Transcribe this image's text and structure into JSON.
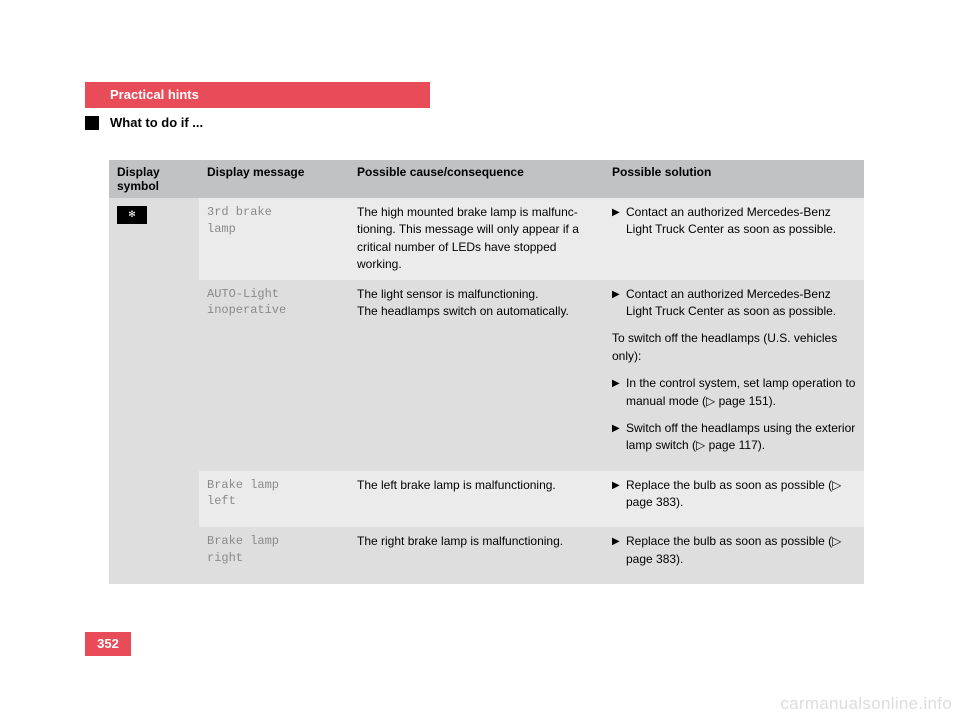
{
  "header": {
    "section_title": "Practical hints",
    "subtitle": "What to do if ..."
  },
  "table": {
    "headers": {
      "symbol": "Display symbol",
      "message": "Display message",
      "cause": "Possible cause/consequence",
      "solution": "Possible solution"
    },
    "symbol_glyph": "✻",
    "rows": [
      {
        "shade": "light",
        "message": "3rd brake\nlamp",
        "cause": "The high mounted brake lamp is malfunc-tioning. This message will only appear if a critical number of LEDs have stopped working.",
        "solution_items": [
          {
            "type": "bullet",
            "text": "Contact an authorized Mercedes-Benz Light Truck Center as soon as possible."
          }
        ]
      },
      {
        "shade": "dark",
        "message": "AUTO-Light\ninoperative",
        "cause": "The light sensor is malfunctioning.\nThe headlamps switch on automatically.",
        "solution_items": [
          {
            "type": "bullet",
            "text": "Contact an authorized Mercedes-Benz Light Truck Center as soon as possible."
          },
          {
            "type": "plain",
            "text": "To switch off the headlamps (U.S. vehicles only):"
          },
          {
            "type": "bullet",
            "text": "In the control system, set lamp operation to manual mode (▷ page 151)."
          },
          {
            "type": "bullet",
            "text": "Switch off the headlamps using the exterior lamp switch (▷ page 117)."
          }
        ]
      },
      {
        "shade": "light",
        "message": "Brake lamp\nleft",
        "cause": "The left brake lamp is malfunctioning.",
        "solution_items": [
          {
            "type": "bullet",
            "text": "Replace the bulb as soon as possible (▷ page 383)."
          }
        ]
      },
      {
        "shade": "dark",
        "message": "Brake lamp\nright",
        "cause": "The right brake lamp is malfunctioning.",
        "solution_items": [
          {
            "type": "bullet",
            "text": "Replace the bulb as soon as possible (▷ page 383)."
          }
        ]
      }
    ]
  },
  "page_number": "352",
  "watermark": "carmanualsonline.info",
  "colors": {
    "accent": "#e84c59",
    "header_bg": "#c1c2c3",
    "row_light": "#ebebeb",
    "row_dark": "#dedede",
    "mono_text": "#8a8a8a",
    "watermark": "#dddddd"
  }
}
